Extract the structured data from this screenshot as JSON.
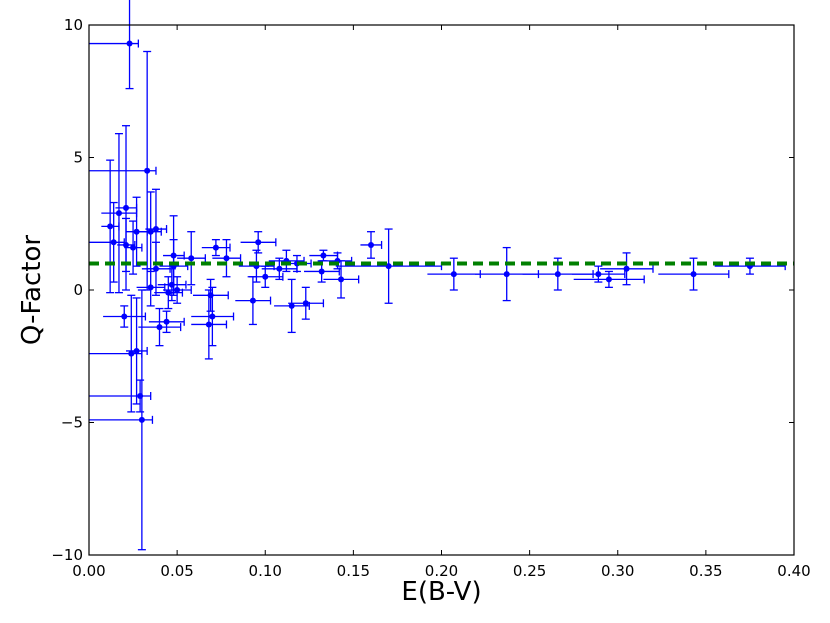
{
  "chart_data": {
    "type": "scatter",
    "title": "",
    "xlabel": "E(B-V)",
    "ylabel": "Q-Factor",
    "xlim": [
      0.0,
      0.4
    ],
    "ylim": [
      -10,
      10
    ],
    "xticks": [
      0.0,
      0.05,
      0.1,
      0.15,
      0.2,
      0.25,
      0.3,
      0.35,
      0.4
    ],
    "xtick_labels": [
      "0.00",
      "0.05",
      "0.10",
      "0.15",
      "0.20",
      "0.25",
      "0.30",
      "0.35",
      "0.40"
    ],
    "yticks": [
      -10,
      -5,
      0,
      5,
      10
    ],
    "ytick_labels": [
      "−10",
      "−5",
      "0",
      "5",
      "10"
    ],
    "grid": false,
    "reference_line": {
      "y": 1.0,
      "style": "dashed",
      "color": "#008000"
    },
    "series": [
      {
        "color": "#0000ff",
        "points": [
          {
            "x": 0.023,
            "y": 9.3,
            "xerr": 0.005,
            "yerr": 1.7,
            "xstart": 0.0
          },
          {
            "x": 0.033,
            "y": 4.5,
            "xerr": 0.005,
            "yerr": 4.5,
            "xstart": 0.0
          },
          {
            "x": 0.017,
            "y": 2.9,
            "xerr": 0.01,
            "yerr": 3.0
          },
          {
            "x": 0.012,
            "y": 2.4,
            "xerr": 0.005,
            "yerr": 2.5
          },
          {
            "x": 0.021,
            "y": 3.1,
            "xerr": 0.006,
            "yerr": 3.1
          },
          {
            "x": 0.027,
            "y": 2.2,
            "xerr": 0.006,
            "yerr": 1.3
          },
          {
            "x": 0.035,
            "y": 2.2,
            "xerr": 0.006,
            "yerr": 1.5
          },
          {
            "x": 0.038,
            "y": 2.3,
            "xerr": 0.006,
            "yerr": 1.5
          },
          {
            "x": 0.014,
            "y": 1.8,
            "xerr": 0.006,
            "yerr": 1.5,
            "xstart": 0.0
          },
          {
            "x": 0.021,
            "y": 1.7,
            "xerr": 0.005,
            "yerr": 1.0
          },
          {
            "x": 0.025,
            "y": 1.6,
            "xerr": 0.005,
            "yerr": 1.0
          },
          {
            "x": 0.048,
            "y": 1.3,
            "xerr": 0.006,
            "yerr": 1.5
          },
          {
            "x": 0.058,
            "y": 1.2,
            "xerr": 0.008,
            "yerr": 1.0
          },
          {
            "x": 0.072,
            "y": 1.6,
            "xerr": 0.008,
            "yerr": 0.3
          },
          {
            "x": 0.078,
            "y": 1.2,
            "xerr": 0.008,
            "yerr": 0.7
          },
          {
            "x": 0.096,
            "y": 1.8,
            "xerr": 0.01,
            "yerr": 0.4
          },
          {
            "x": 0.112,
            "y": 1.1,
            "xerr": 0.01,
            "yerr": 0.4
          },
          {
            "x": 0.118,
            "y": 1.0,
            "xerr": 0.008,
            "yerr": 0.3
          },
          {
            "x": 0.133,
            "y": 1.3,
            "xerr": 0.008,
            "yerr": 0.2
          },
          {
            "x": 0.141,
            "y": 1.1,
            "xerr": 0.008,
            "yerr": 0.3
          },
          {
            "x": 0.16,
            "y": 1.7,
            "xerr": 0.006,
            "yerr": 0.5
          },
          {
            "x": 0.095,
            "y": 0.9,
            "xerr": 0.01,
            "yerr": 0.6
          },
          {
            "x": 0.108,
            "y": 0.8,
            "xerr": 0.01,
            "yerr": 0.4
          },
          {
            "x": 0.1,
            "y": 0.5,
            "xerr": 0.01,
            "yerr": 0.4
          },
          {
            "x": 0.132,
            "y": 0.7,
            "xerr": 0.01,
            "yerr": 0.4
          },
          {
            "x": 0.143,
            "y": 0.4,
            "xerr": 0.01,
            "yerr": 0.7
          },
          {
            "x": 0.17,
            "y": 0.9,
            "xerr": 0.03,
            "yerr": 1.4
          },
          {
            "x": 0.207,
            "y": 0.6,
            "xerr": 0.015,
            "yerr": 0.6
          },
          {
            "x": 0.237,
            "y": 0.6,
            "xerr": 0.018,
            "yerr": 1.0
          },
          {
            "x": 0.266,
            "y": 0.6,
            "xerr": 0.02,
            "yerr": 0.6
          },
          {
            "x": 0.289,
            "y": 0.6,
            "xerr": 0.015,
            "yerr": 0.3
          },
          {
            "x": 0.295,
            "y": 0.4,
            "xerr": 0.02,
            "yerr": 0.3
          },
          {
            "x": 0.305,
            "y": 0.8,
            "xerr": 0.015,
            "yerr": 0.6
          },
          {
            "x": 0.343,
            "y": 0.6,
            "xerr": 0.02,
            "yerr": 0.6
          },
          {
            "x": 0.375,
            "y": 0.9,
            "xerr": 0.02,
            "yerr": 0.3
          },
          {
            "x": 0.038,
            "y": 0.8,
            "xerr": 0.008,
            "yerr": 1.0
          },
          {
            "x": 0.048,
            "y": 0.9,
            "xerr": 0.008,
            "yerr": 1.0
          },
          {
            "x": 0.035,
            "y": 0.1,
            "xerr": 0.008,
            "yerr": 0.7
          },
          {
            "x": 0.047,
            "y": 0.2,
            "xerr": 0.008,
            "yerr": 0.6
          },
          {
            "x": 0.05,
            "y": 0.0,
            "xerr": 0.008,
            "yerr": 0.5
          },
          {
            "x": 0.045,
            "y": -0.1,
            "xerr": 0.008,
            "yerr": 0.6
          },
          {
            "x": 0.069,
            "y": -0.2,
            "xerr": 0.01,
            "yerr": 0.6
          },
          {
            "x": 0.093,
            "y": -0.4,
            "xerr": 0.01,
            "yerr": 0.9
          },
          {
            "x": 0.115,
            "y": -0.6,
            "xerr": 0.01,
            "yerr": 1.0
          },
          {
            "x": 0.123,
            "y": -0.5,
            "xerr": 0.01,
            "yerr": 0.6
          },
          {
            "x": 0.07,
            "y": -1.0,
            "xerr": 0.012,
            "yerr": 1.1
          },
          {
            "x": 0.068,
            "y": -1.3,
            "xerr": 0.01,
            "yerr": 1.3
          },
          {
            "x": 0.04,
            "y": -1.4,
            "xerr": 0.012,
            "yerr": 0.7
          },
          {
            "x": 0.044,
            "y": -1.2,
            "xerr": 0.01,
            "yerr": 0.4
          },
          {
            "x": 0.02,
            "y": -1.0,
            "xerr": 0.012,
            "yerr": 0.4
          },
          {
            "x": 0.024,
            "y": -2.4,
            "xerr": 0.006,
            "yerr": 2.2,
            "xstart": 0.0
          },
          {
            "x": 0.027,
            "y": -2.3,
            "xerr": 0.006,
            "yerr": 2.0
          },
          {
            "x": 0.029,
            "y": -4.0,
            "xerr": 0.006,
            "yerr": 0.6,
            "xstart": 0.0
          },
          {
            "x": 0.03,
            "y": -4.9,
            "xerr": 0.006,
            "yerr": 4.9,
            "xstart": 0.0
          }
        ]
      }
    ]
  }
}
